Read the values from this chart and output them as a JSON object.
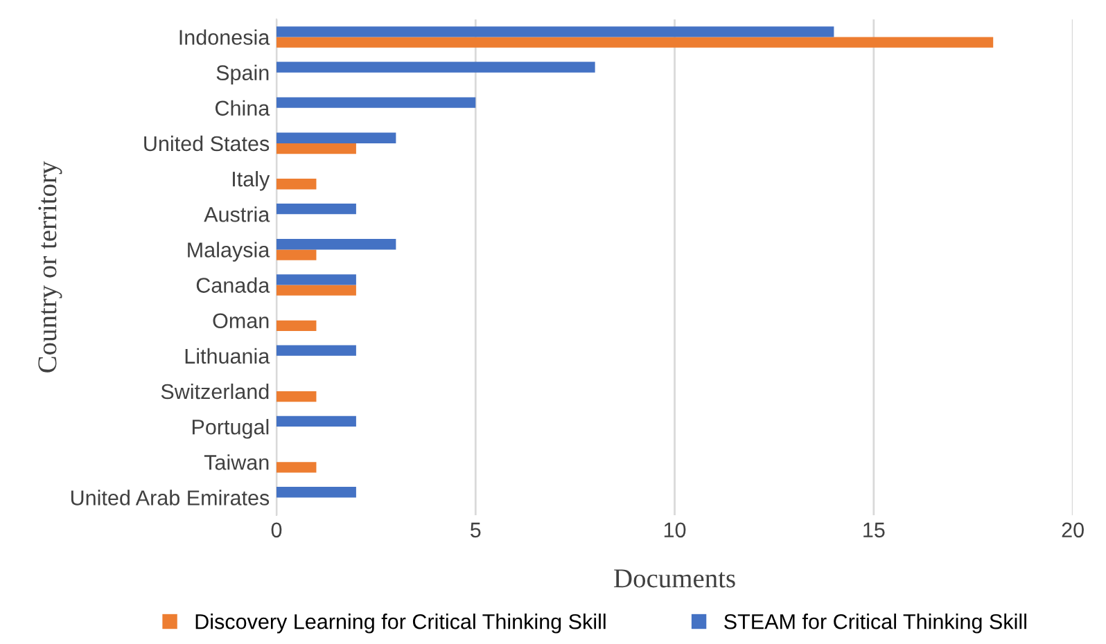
{
  "chart_data": {
    "type": "bar",
    "orientation": "horizontal",
    "xlabel": "Documents",
    "ylabel": "Country or territory",
    "categories": [
      "Indonesia",
      "Spain",
      "China",
      "United States",
      "Italy",
      "Austria",
      "Malaysia",
      "Canada",
      "Oman",
      "Lithuania",
      "Switzerland",
      "Portugal",
      "Taiwan",
      "United Arab Emirates"
    ],
    "series": [
      {
        "name": "Discovery Learning for Critical Thinking Skill",
        "color": "#ed7d31",
        "values": [
          18,
          null,
          null,
          2,
          1,
          null,
          1,
          2,
          1,
          null,
          1,
          null,
          1,
          null
        ]
      },
      {
        "name": "STEAM for Critical Thinking Skill",
        "color": "#4472c4",
        "values": [
          14,
          8,
          5,
          3,
          null,
          2,
          3,
          2,
          null,
          2,
          null,
          2,
          null,
          2
        ]
      }
    ],
    "xlim": [
      0,
      20
    ],
    "xticks": [
      0,
      5,
      10,
      15,
      20
    ],
    "grid": "x",
    "legend": "bottom"
  }
}
